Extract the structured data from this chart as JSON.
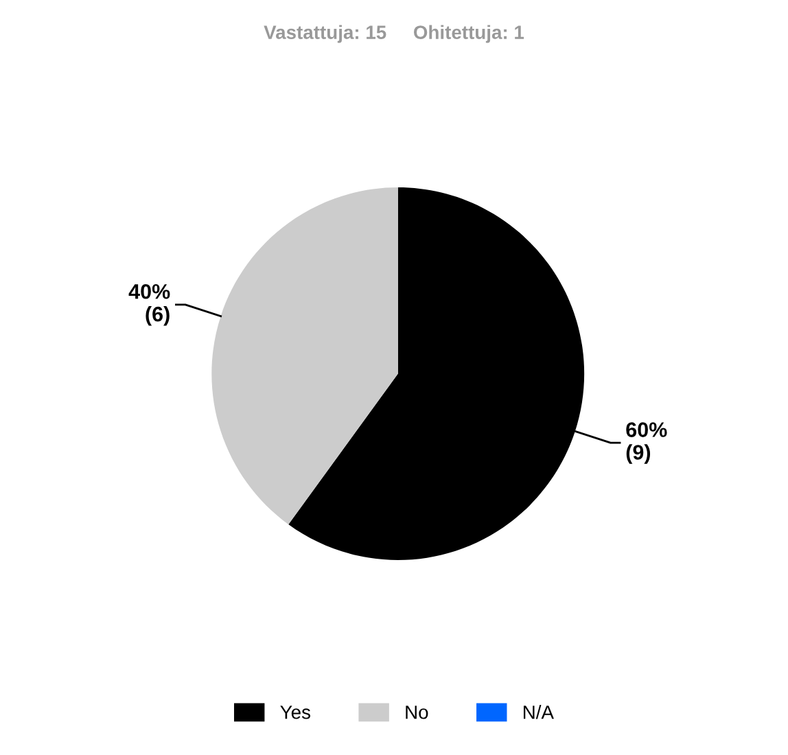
{
  "chart_data": {
    "type": "pie",
    "title": "Vastattuja: 15     Ohitettuja: 1",
    "categories": [
      "Yes",
      "No",
      "N/A"
    ],
    "values": [
      9,
      6,
      0
    ],
    "colors": [
      "#000000",
      "#cccccc",
      "#0066ff"
    ],
    "value_labels": [
      "60%\n(9)",
      "40%\n(6)",
      null
    ],
    "legend": "bottom"
  }
}
